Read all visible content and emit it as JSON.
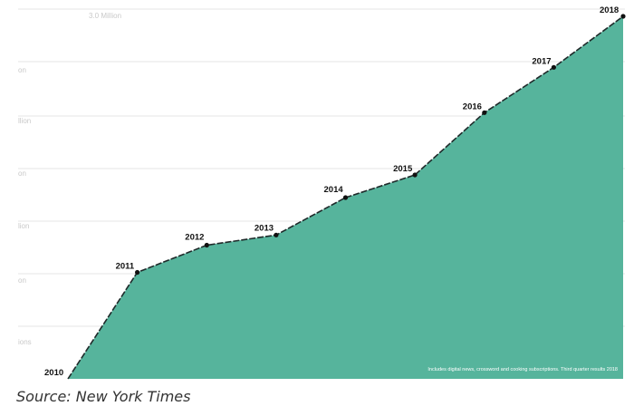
{
  "chart_data": {
    "type": "area",
    "x": [
      "2010",
      "2011",
      "2012",
      "2013",
      "2014",
      "2015",
      "2016",
      "2017",
      "2018"
    ],
    "values": [
      0.0,
      0.94,
      1.18,
      1.27,
      1.6,
      1.8,
      2.35,
      2.75,
      3.2
    ],
    "point_labels": [
      "2010",
      "2011",
      "2012",
      "2013",
      "2014",
      "2015",
      "2016",
      "2017",
      "2018"
    ],
    "ylim": [
      0,
      3.2
    ],
    "y_top_label": "3.0 Million",
    "y_tick_labels": [
      "on",
      "llion",
      "on",
      "lion",
      "on",
      "ions"
    ],
    "grid": true,
    "fill_color": "#56b49c",
    "line_color": "#1f2a2a",
    "point_color": "#111111",
    "grid_color": "#e6e6e6",
    "footnote": "Includes digital news, crossword and cooking subscriptions. Third quarter results 2018"
  },
  "source": "Source: New York Times"
}
